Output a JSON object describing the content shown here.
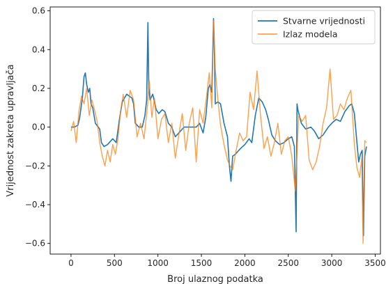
{
  "chart_data": {
    "type": "line",
    "title": "",
    "xlabel": "Broj ulaznog podatka",
    "ylabel": "Vrijednost zakreta upravljača",
    "xlim": [
      -240,
      3560
    ],
    "ylim": [
      -0.655,
      0.62
    ],
    "xticks": [
      0,
      500,
      1000,
      1500,
      2000,
      2500,
      3000,
      3500
    ],
    "yticks": [
      -0.6,
      -0.4,
      -0.2,
      0.0,
      0.2,
      0.4,
      0.6
    ],
    "ytick_labels": [
      "−0.6",
      "−0.4",
      "−0.2",
      "0.0",
      "0.2",
      "0.4",
      "0.6"
    ],
    "grid": false,
    "legend_position": "top-right",
    "series": [
      {
        "name": "Stvarne vrijednosti",
        "color": "#1f77b4",
        "x": [
          0,
          40,
          80,
          100,
          130,
          150,
          165,
          180,
          200,
          215,
          230,
          250,
          280,
          330,
          350,
          380,
          420,
          480,
          520,
          560,
          590,
          640,
          700,
          720,
          740,
          780,
          820,
          850,
          870,
          885,
          895,
          910,
          940,
          980,
          1010,
          1050,
          1080,
          1120,
          1160,
          1200,
          1220,
          1260,
          1300,
          1360,
          1400,
          1440,
          1480,
          1520,
          1550,
          1580,
          1600,
          1620,
          1640,
          1650,
          1660,
          1690,
          1720,
          1760,
          1800,
          1820,
          1840,
          1860,
          1890,
          1950,
          2000,
          2050,
          2080,
          2120,
          2160,
          2200,
          2240,
          2270,
          2310,
          2350,
          2400,
          2450,
          2500,
          2540,
          2570,
          2590,
          2600,
          2610,
          2650,
          2700,
          2760,
          2800,
          2850,
          2900,
          2960,
          3000,
          3050,
          3100,
          3150,
          3200,
          3230,
          3260,
          3290,
          3310,
          3330,
          3350,
          3365,
          3380,
          3400
        ],
        "y": [
          0.0,
          0.0,
          0.01,
          0.05,
          0.15,
          0.26,
          0.28,
          0.22,
          0.18,
          0.2,
          0.12,
          0.1,
          0.02,
          -0.01,
          -0.08,
          -0.1,
          -0.09,
          -0.06,
          -0.08,
          0.05,
          0.13,
          0.17,
          0.15,
          0.12,
          0.02,
          0.0,
          0.0,
          0.06,
          0.14,
          0.54,
          0.2,
          0.14,
          0.17,
          0.09,
          0.07,
          0.09,
          0.08,
          0.02,
          0.0,
          -0.05,
          -0.04,
          -0.02,
          0.0,
          0.0,
          0.0,
          0.0,
          0.02,
          -0.03,
          0.05,
          0.2,
          0.22,
          0.18,
          0.56,
          0.38,
          0.12,
          0.13,
          0.12,
          0.02,
          -0.05,
          -0.19,
          -0.28,
          -0.15,
          -0.14,
          -0.11,
          -0.09,
          -0.06,
          -0.08,
          0.06,
          0.15,
          0.13,
          0.09,
          0.04,
          -0.04,
          -0.07,
          -0.09,
          -0.08,
          -0.06,
          -0.05,
          -0.1,
          -0.54,
          0.12,
          0.09,
          0.02,
          -0.01,
          0.0,
          -0.02,
          -0.06,
          -0.04,
          0.0,
          0.02,
          0.04,
          0.03,
          0.08,
          0.11,
          0.12,
          0.07,
          -0.08,
          -0.18,
          -0.14,
          -0.12,
          -0.56,
          -0.15,
          -0.1
        ]
      },
      {
        "name": "Izlaz modela",
        "color": "#ff7f0e",
        "x": [
          0,
          30,
          60,
          90,
          120,
          150,
          180,
          210,
          240,
          270,
          300,
          330,
          360,
          390,
          420,
          450,
          480,
          510,
          540,
          570,
          600,
          640,
          680,
          720,
          760,
          800,
          840,
          880,
          900,
          930,
          960,
          1000,
          1040,
          1080,
          1120,
          1160,
          1200,
          1240,
          1280,
          1320,
          1360,
          1400,
          1440,
          1480,
          1520,
          1560,
          1590,
          1620,
          1640,
          1660,
          1690,
          1720,
          1760,
          1800,
          1830,
          1860,
          1900,
          1940,
          1980,
          2020,
          2060,
          2100,
          2140,
          2180,
          2220,
          2260,
          2300,
          2340,
          2380,
          2420,
          2460,
          2500,
          2540,
          2580,
          2620,
          2660,
          2700,
          2740,
          2780,
          2820,
          2860,
          2900,
          2940,
          2980,
          3020,
          3060,
          3100,
          3140,
          3180,
          3220,
          3260,
          3290,
          3320,
          3345,
          3360,
          3380,
          3400
        ],
        "y": [
          -0.02,
          0.03,
          -0.08,
          0.08,
          0.16,
          0.12,
          0.2,
          0.06,
          0.14,
          0.09,
          0.03,
          -0.08,
          -0.15,
          -0.2,
          -0.12,
          -0.18,
          -0.09,
          -0.14,
          -0.06,
          0.08,
          0.17,
          0.05,
          0.19,
          0.14,
          -0.05,
          0.02,
          -0.06,
          0.11,
          0.24,
          0.05,
          0.15,
          -0.06,
          0.04,
          0.07,
          -0.08,
          0.02,
          -0.16,
          -0.04,
          0.07,
          -0.12,
          0.02,
          0.1,
          -0.18,
          0.09,
          0.02,
          0.16,
          0.28,
          0.1,
          0.55,
          0.3,
          0.14,
          0.01,
          -0.09,
          -0.17,
          -0.2,
          -0.22,
          -0.12,
          -0.03,
          -0.07,
          -0.05,
          0.18,
          0.09,
          0.29,
          0.06,
          -0.11,
          -0.05,
          -0.15,
          -0.08,
          0.02,
          -0.14,
          -0.07,
          -0.05,
          -0.15,
          -0.33,
          0.06,
          0.03,
          0.06,
          -0.17,
          -0.22,
          -0.18,
          -0.1,
          0.02,
          0.1,
          0.3,
          0.04,
          0.06,
          0.12,
          0.09,
          0.15,
          0.19,
          -0.09,
          -0.21,
          -0.26,
          -0.16,
          -0.6,
          -0.07,
          -0.08
        ]
      }
    ]
  }
}
